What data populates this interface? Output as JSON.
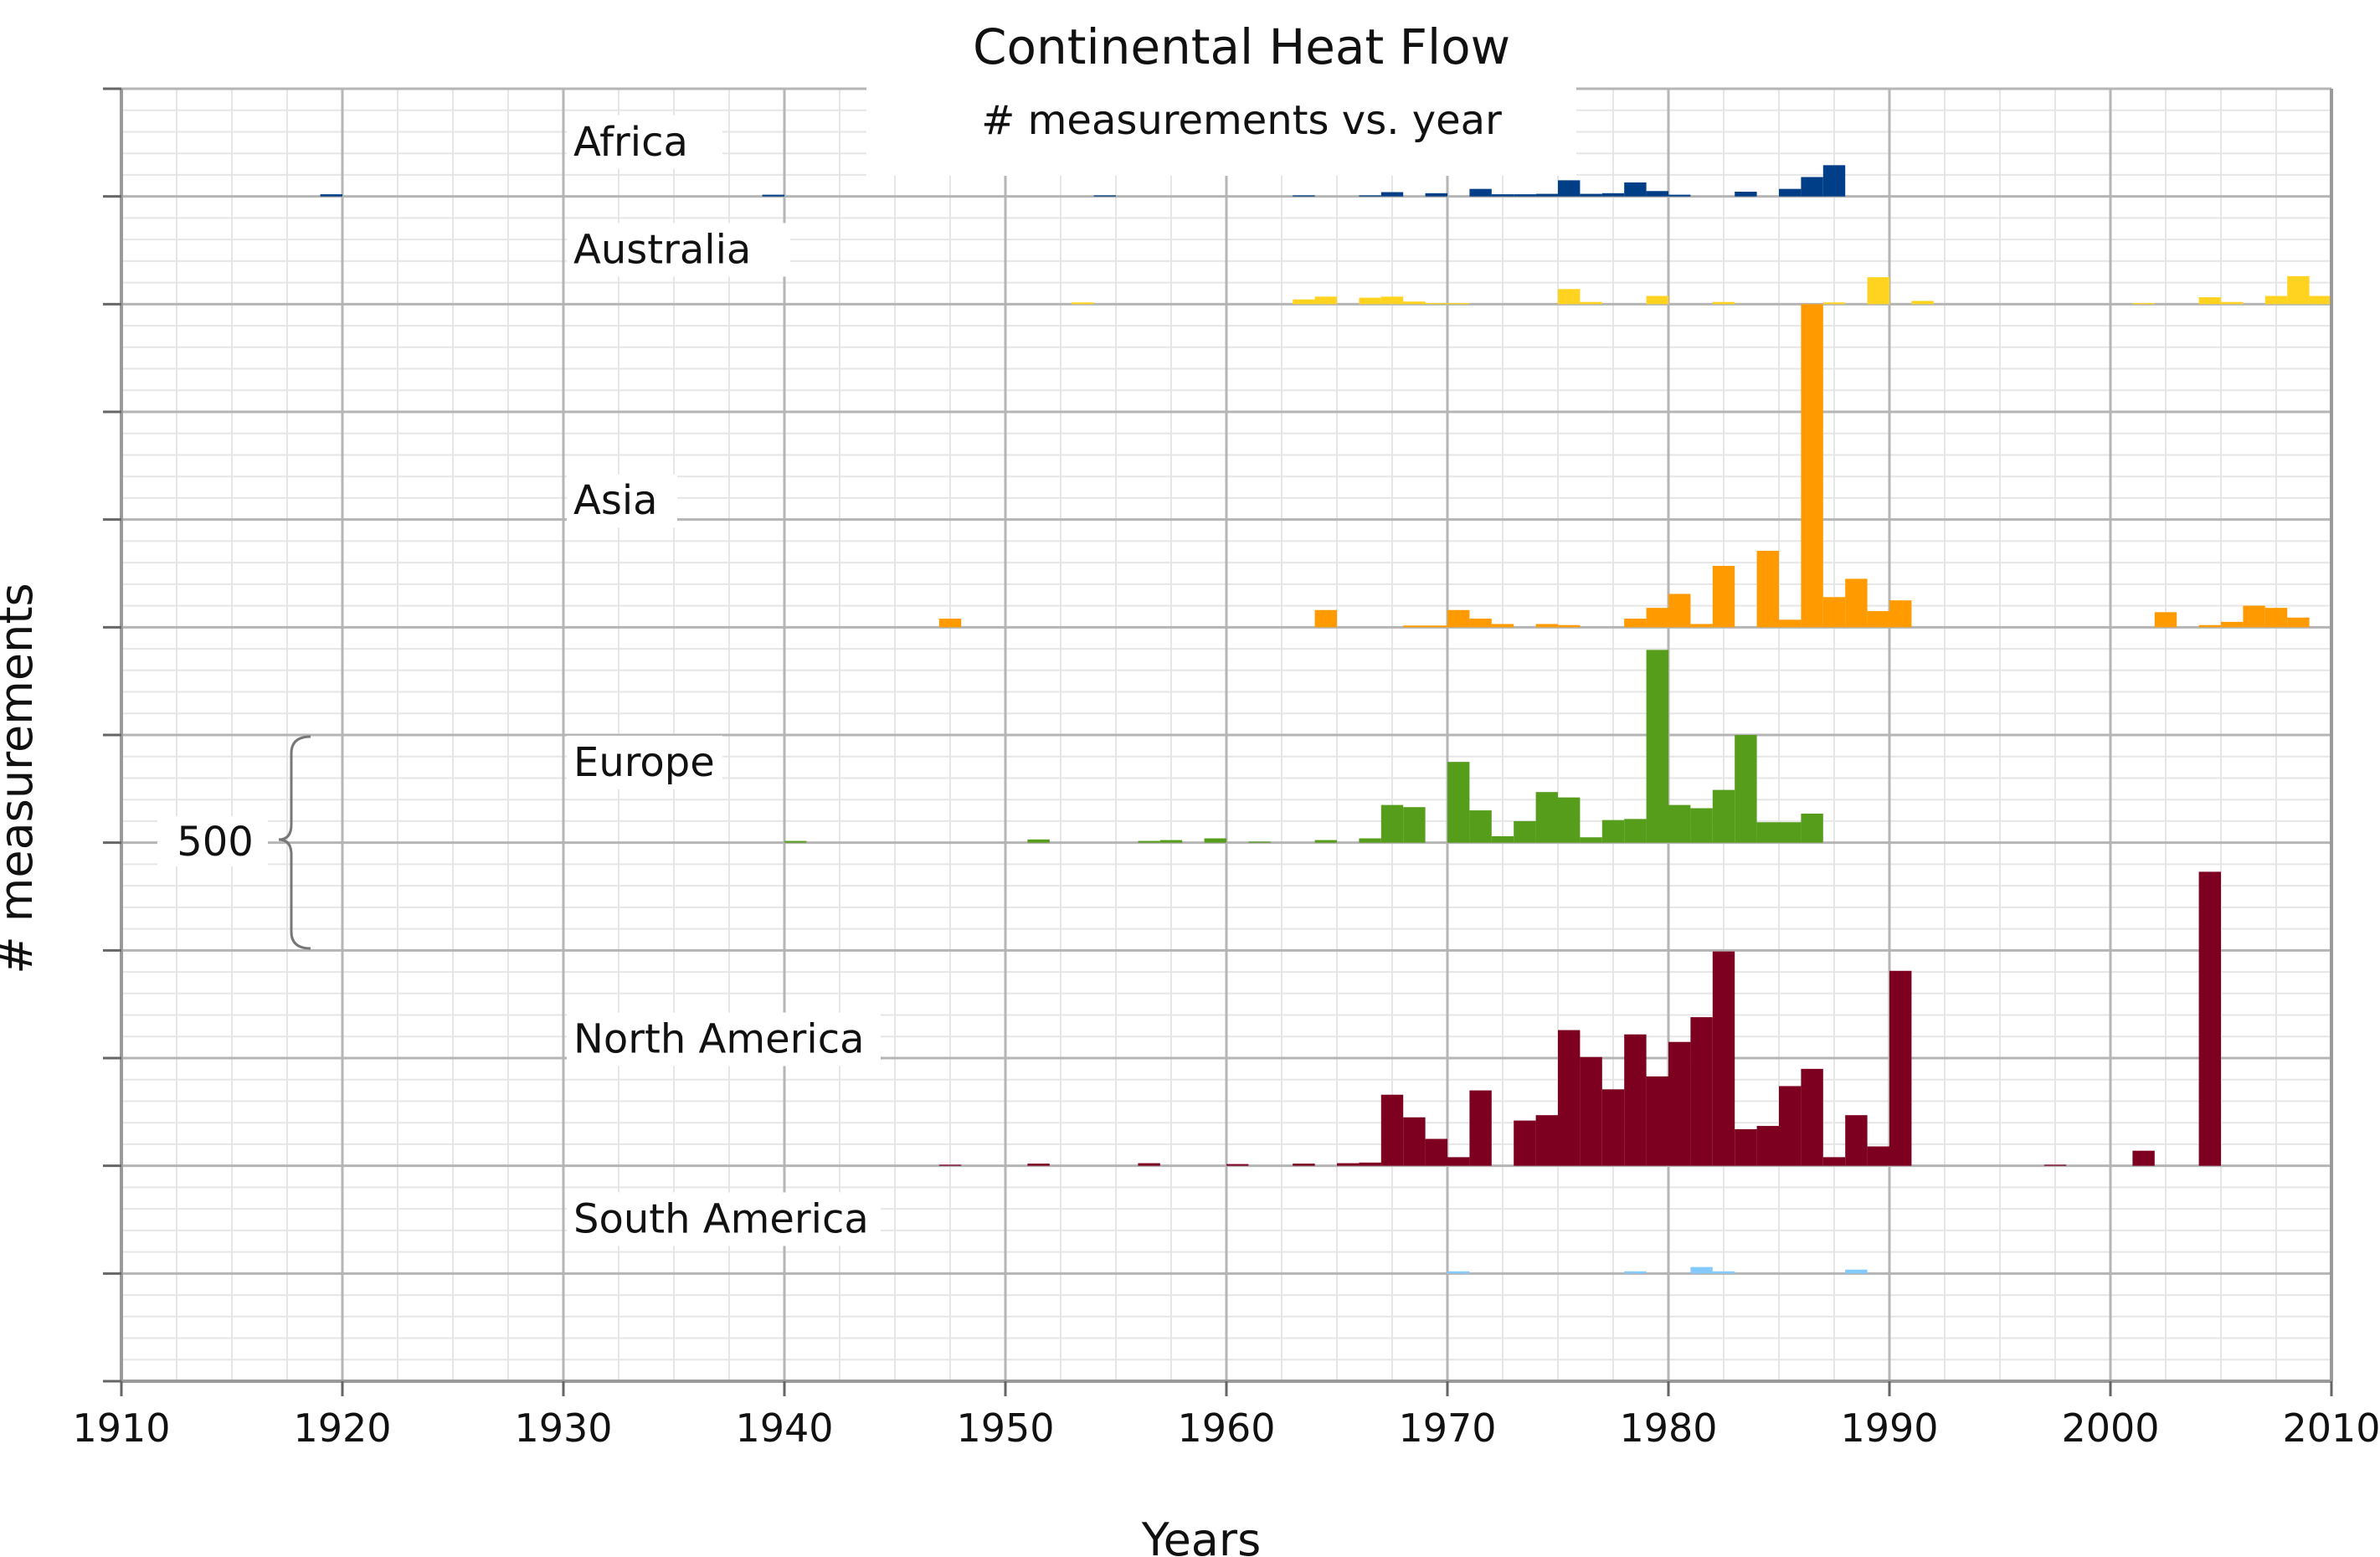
{
  "chart_data": {
    "type": "bar",
    "title": "Continental Heat Flow",
    "subtitle": "# measurements vs. year",
    "xlabel": "Years",
    "ylabel": "# measurements",
    "xlim": [
      1910,
      2010
    ],
    "x_ticks": [
      "1910",
      "1920",
      "1930",
      "1940",
      "1950",
      "1960",
      "1970",
      "1980",
      "1990",
      "2000",
      "2010"
    ],
    "scale_bar": {
      "label": "500",
      "value": 500
    },
    "grid": true,
    "bin_width_years": 1,
    "series": [
      {
        "name": "Africa",
        "color": "#003f87",
        "band_rows": 1,
        "bars": [
          [
            1919,
            10
          ],
          [
            1939,
            8
          ],
          [
            1954,
            5
          ],
          [
            1963,
            5
          ],
          [
            1966,
            5
          ],
          [
            1967,
            20
          ],
          [
            1969,
            15
          ],
          [
            1971,
            35
          ],
          [
            1972,
            10
          ],
          [
            1973,
            10
          ],
          [
            1974,
            12
          ],
          [
            1975,
            75
          ],
          [
            1976,
            12
          ],
          [
            1977,
            15
          ],
          [
            1978,
            65
          ],
          [
            1979,
            25
          ],
          [
            1980,
            8
          ],
          [
            1983,
            22
          ],
          [
            1985,
            35
          ],
          [
            1986,
            90
          ],
          [
            1987,
            145
          ]
        ]
      },
      {
        "name": "Australia",
        "color": "#ffd320",
        "band_rows": 1,
        "bars": [
          [
            1953,
            8
          ],
          [
            1963,
            22
          ],
          [
            1964,
            35
          ],
          [
            1966,
            30
          ],
          [
            1967,
            35
          ],
          [
            1968,
            12
          ],
          [
            1969,
            5
          ],
          [
            1970,
            5
          ],
          [
            1975,
            70
          ],
          [
            1976,
            10
          ],
          [
            1979,
            38
          ],
          [
            1982,
            10
          ],
          [
            1987,
            8
          ],
          [
            1989,
            125
          ],
          [
            1991,
            15
          ],
          [
            2001,
            5
          ],
          [
            2004,
            32
          ],
          [
            2005,
            10
          ],
          [
            2007,
            38
          ],
          [
            2008,
            130
          ],
          [
            2009,
            38
          ]
        ]
      },
      {
        "name": "Asia",
        "color": "#ff9b00",
        "band_rows": 3,
        "bars": [
          [
            1947,
            40
          ],
          [
            1964,
            80
          ],
          [
            1968,
            8
          ],
          [
            1969,
            8
          ],
          [
            1970,
            80
          ],
          [
            1971,
            40
          ],
          [
            1972,
            15
          ],
          [
            1974,
            15
          ],
          [
            1975,
            10
          ],
          [
            1978,
            40
          ],
          [
            1979,
            90
          ],
          [
            1980,
            155
          ],
          [
            1981,
            15
          ],
          [
            1982,
            285
          ],
          [
            1984,
            355
          ],
          [
            1985,
            35
          ],
          [
            1986,
            1500
          ],
          [
            1987,
            140
          ],
          [
            1988,
            225
          ],
          [
            1989,
            75
          ],
          [
            1990,
            125
          ],
          [
            2002,
            70
          ],
          [
            2004,
            10
          ],
          [
            2005,
            25
          ],
          [
            2006,
            100
          ],
          [
            2007,
            90
          ],
          [
            2008,
            45
          ]
        ]
      },
      {
        "name": "Europe",
        "color": "#579d1c",
        "band_rows": 2,
        "bars": [
          [
            1940,
            8
          ],
          [
            1951,
            15
          ],
          [
            1956,
            8
          ],
          [
            1957,
            12
          ],
          [
            1959,
            20
          ],
          [
            1961,
            5
          ],
          [
            1964,
            12
          ],
          [
            1966,
            20
          ],
          [
            1967,
            175
          ],
          [
            1968,
            165
          ],
          [
            1970,
            375
          ],
          [
            1971,
            150
          ],
          [
            1972,
            30
          ],
          [
            1973,
            100
          ],
          [
            1974,
            235
          ],
          [
            1975,
            210
          ],
          [
            1976,
            25
          ],
          [
            1977,
            105
          ],
          [
            1978,
            110
          ],
          [
            1979,
            895
          ],
          [
            1980,
            175
          ],
          [
            1981,
            160
          ],
          [
            1982,
            245
          ],
          [
            1983,
            500
          ],
          [
            1984,
            95
          ],
          [
            1985,
            95
          ],
          [
            1986,
            135
          ]
        ]
      },
      {
        "name": "North America",
        "color": "#7e0021",
        "band_rows": 3,
        "bars": [
          [
            1947,
            5
          ],
          [
            1951,
            10
          ],
          [
            1956,
            12
          ],
          [
            1960,
            8
          ],
          [
            1963,
            10
          ],
          [
            1965,
            12
          ],
          [
            1966,
            15
          ],
          [
            1967,
            330
          ],
          [
            1968,
            225
          ],
          [
            1969,
            125
          ],
          [
            1970,
            40
          ],
          [
            1971,
            350
          ],
          [
            1973,
            210
          ],
          [
            1974,
            235
          ],
          [
            1975,
            630
          ],
          [
            1976,
            505
          ],
          [
            1977,
            355
          ],
          [
            1978,
            610
          ],
          [
            1979,
            415
          ],
          [
            1980,
            575
          ],
          [
            1981,
            690
          ],
          [
            1982,
            995
          ],
          [
            1983,
            170
          ],
          [
            1984,
            185
          ],
          [
            1985,
            370
          ],
          [
            1986,
            450
          ],
          [
            1987,
            40
          ],
          [
            1988,
            235
          ],
          [
            1989,
            90
          ],
          [
            1990,
            905
          ],
          [
            1997,
            5
          ],
          [
            2001,
            70
          ],
          [
            2004,
            1365
          ]
        ]
      },
      {
        "name": "South America",
        "color": "#83caff",
        "band_rows": 1,
        "bars": [
          [
            1970,
            10
          ],
          [
            1978,
            10
          ],
          [
            1981,
            30
          ],
          [
            1982,
            10
          ],
          [
            1988,
            18
          ]
        ]
      }
    ]
  }
}
